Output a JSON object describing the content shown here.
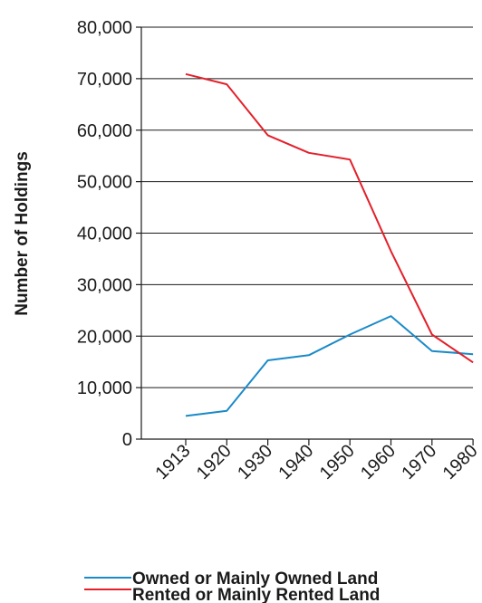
{
  "chart_data": {
    "type": "line",
    "x": [
      "1913",
      "1920",
      "1930",
      "1940",
      "1950",
      "1960",
      "1970",
      "1980"
    ],
    "ylabel": "Number of Holdings",
    "ylim": [
      0,
      80000
    ],
    "yticks": [
      "0",
      "10,000",
      "20,000",
      "30,000",
      "40,000",
      "50,000",
      "60,000",
      "70,000",
      "80,000"
    ],
    "grid": true,
    "legend_position": "bottom",
    "series": [
      {
        "name": "Owned or Mainly Owned Land",
        "color": "#1a8ac8",
        "values": [
          4500,
          5500,
          15300,
          16300,
          20300,
          23900,
          17100,
          16500
        ]
      },
      {
        "name": "Rented or Mainly Rented Land",
        "color": "#e3202a",
        "values": [
          70900,
          68900,
          59000,
          55600,
          54300,
          36500,
          20300,
          14900
        ]
      }
    ]
  }
}
